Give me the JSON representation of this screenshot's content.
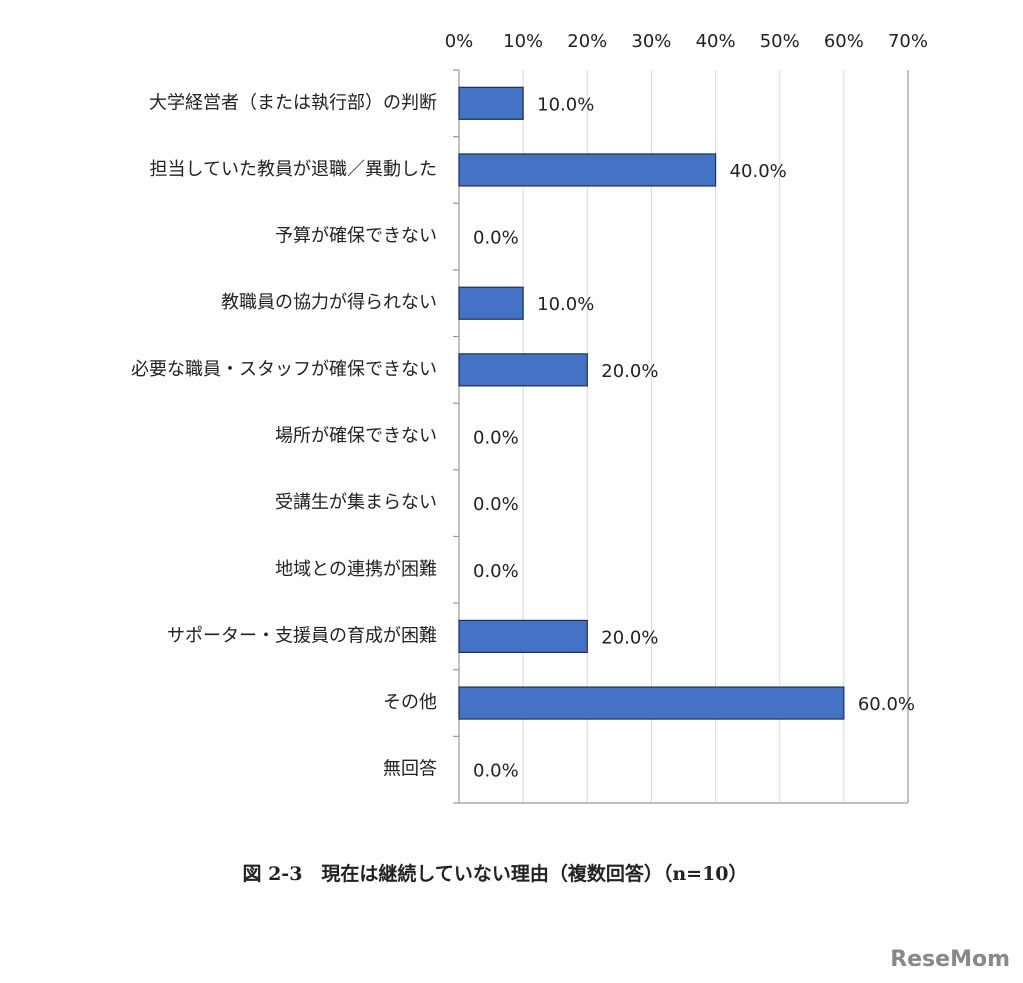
{
  "chart_data": {
    "type": "hbar",
    "caption": "図 2-3　現在は継続していない理由（複数回答）（n=10）",
    "watermark": "ReseMom",
    "categories": [
      "大学経営者（または執行部）の判断",
      "担当していた教員が退職／異動した",
      "予算が確保できない",
      "教職員の協力が得られない",
      "必要な職員・スタッフが確保できない",
      "場所が確保できない",
      "受講生が集まらない",
      "地域との連携が困難",
      "サポーター・支援員の育成が困難",
      "その他",
      "無回答"
    ],
    "values": [
      10,
      40,
      0,
      10,
      20,
      0,
      0,
      0,
      20,
      60,
      0
    ],
    "value_labels": [
      "10.0%",
      "40.0%",
      "0.0%",
      "10.0%",
      "20.0%",
      "0.0%",
      "0.0%",
      "0.0%",
      "20.0%",
      "60.0%",
      "0.0%"
    ],
    "color": "#4472c4",
    "xlim": [
      0,
      70
    ],
    "xticks": [
      {
        "value": 0,
        "label": "0%"
      },
      {
        "value": 10,
        "label": "10%"
      },
      {
        "value": 20,
        "label": "20%"
      },
      {
        "value": 30,
        "label": "30%"
      },
      {
        "value": 40,
        "label": "40%"
      },
      {
        "value": 50,
        "label": "50%"
      },
      {
        "value": 60,
        "label": "60%"
      },
      {
        "value": 70,
        "label": "70%"
      }
    ],
    "grid": true
  }
}
